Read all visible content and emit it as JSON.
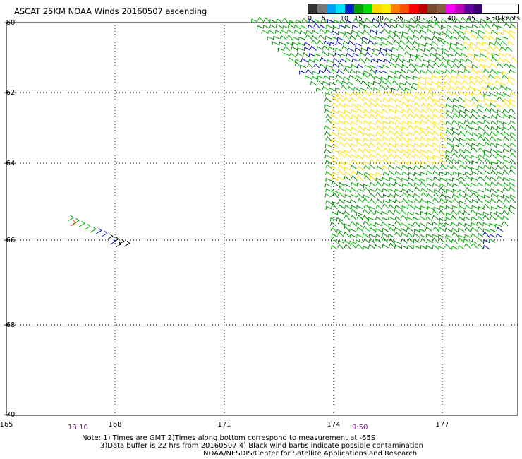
{
  "title": "ASCAT 25KM NOAA Winds 20160507 ascending",
  "legend": {
    "colors": [
      "#333333",
      "#777777",
      "#00a0ff",
      "#00e0ff",
      "#0020c8",
      "#00a000",
      "#00e000",
      "#ffd800",
      "#ffee00",
      "#ff8000",
      "#ff5000",
      "#ff0000",
      "#c00000",
      "#7a4a30",
      "#8a5a40",
      "#ff00ff",
      "#c000c0",
      "#6000a0",
      "#3a0070"
    ],
    "labels": [
      "0",
      "5",
      "10",
      "15",
      "20",
      "25",
      "30",
      "35",
      "40",
      "45",
      ">50 knots"
    ]
  },
  "axes": {
    "lat_labels": [
      "-60",
      "-62",
      "-64",
      "-66",
      "-68",
      "-70"
    ],
    "lon_labels": [
      "165",
      "168",
      "171",
      "174",
      "177"
    ]
  },
  "passes": [
    {
      "time": "13:10"
    },
    {
      "time": "9:50"
    }
  ],
  "notes": [
    "Note: 1) Times are GMT 2)Times along bottom correspond to measurement at -65S",
    "3)Data buffer is 22 hrs from 20160507 4) Black wind barbs indicate possible contamination",
    "NOAA/NESDIS/Center for Satellite Applications and Research"
  ]
}
